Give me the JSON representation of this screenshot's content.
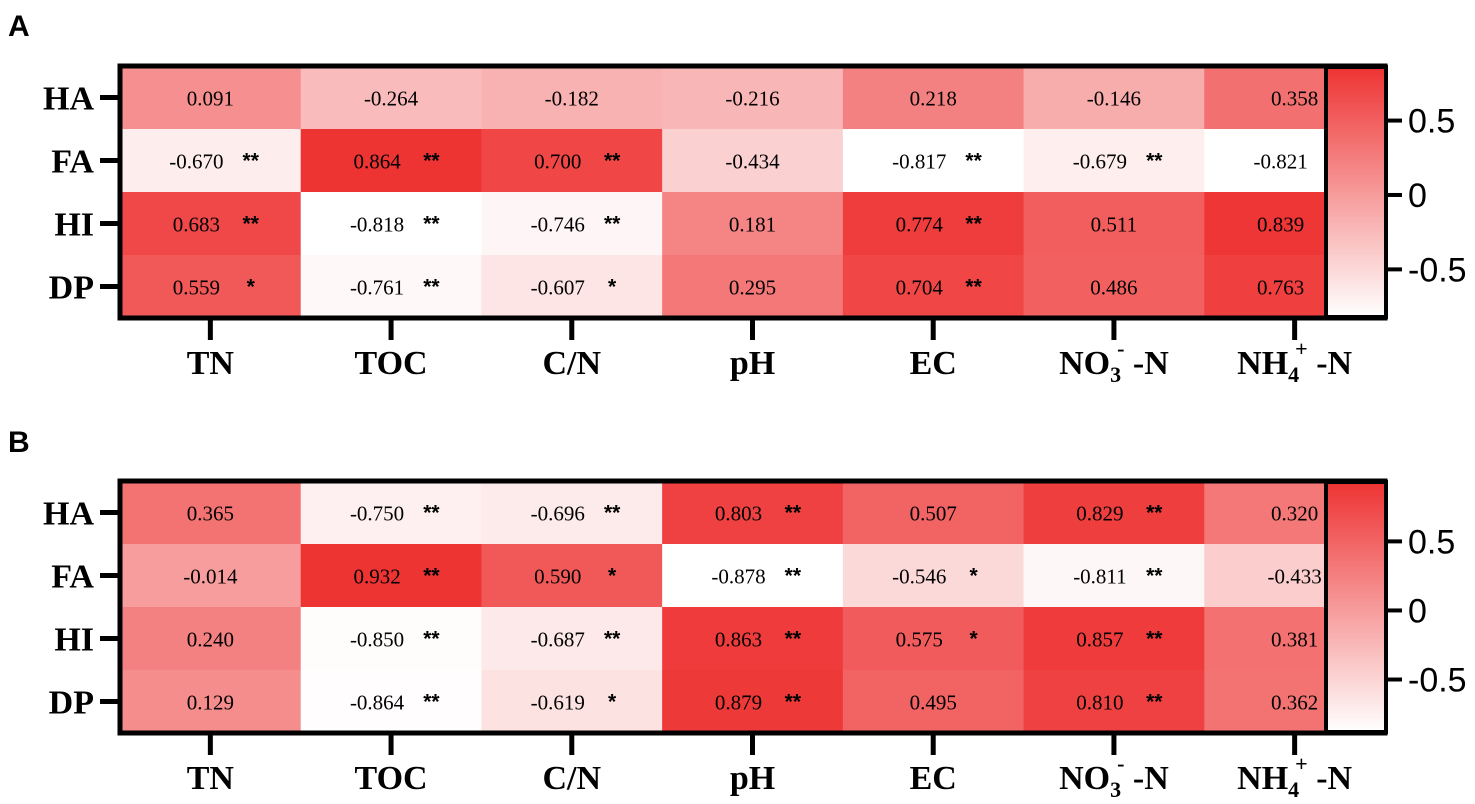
{
  "colors": {
    "low": "#ffffff",
    "high": "#ee3333",
    "axis": "#000000"
  },
  "chart_data": [
    {
      "panel": "A",
      "type": "heatmap",
      "rows": [
        "HA",
        "FA",
        "HI",
        "DP"
      ],
      "columns": [
        {
          "main": "TN",
          "sup": "",
          "sub": "",
          "suffix": ""
        },
        {
          "main": "TOC",
          "sup": "",
          "sub": "",
          "suffix": ""
        },
        {
          "main": "C/N",
          "sup": "",
          "sub": "",
          "suffix": ""
        },
        {
          "main": "pH",
          "sup": "",
          "sub": "",
          "suffix": ""
        },
        {
          "main": "EC",
          "sup": "",
          "sub": "",
          "suffix": ""
        },
        {
          "main": "NO",
          "sup": "-",
          "sub": "3",
          "suffix": " -N"
        },
        {
          "main": "NH",
          "sup": "+",
          "sub": "4",
          "suffix": " -N"
        }
      ],
      "values": [
        [
          "0.091",
          "-0.264",
          "-0.182",
          "-0.216",
          "0.218",
          "-0.146",
          "0.358"
        ],
        [
          "-0.670",
          "0.864",
          "0.700",
          "-0.434",
          "-0.817",
          "-0.679",
          "-0.821"
        ],
        [
          "0.683",
          "-0.818",
          "-0.746",
          "0.181",
          "0.774",
          "0.511",
          "0.839"
        ],
        [
          "0.559",
          "-0.761",
          "-0.607",
          "0.295",
          "0.704",
          "0.486",
          "0.763"
        ]
      ],
      "significance": [
        [
          "",
          "",
          "",
          "",
          "",
          "",
          ""
        ],
        [
          "**",
          "**",
          "**",
          "",
          "**",
          "**",
          "**"
        ],
        [
          "**",
          "**",
          "**",
          "",
          "**",
          "",
          "**"
        ],
        [
          "*",
          "**",
          "*",
          "",
          "**",
          "",
          "**"
        ]
      ],
      "colorbar": {
        "min": -0.82,
        "max": 0.86,
        "ticks": [
          "0.5",
          "0",
          "-0.5"
        ],
        "tick_values": [
          0.5,
          0,
          -0.5
        ]
      }
    },
    {
      "panel": "B",
      "type": "heatmap",
      "rows": [
        "HA",
        "FA",
        "HI",
        "DP"
      ],
      "columns": [
        {
          "main": "TN",
          "sup": "",
          "sub": "",
          "suffix": ""
        },
        {
          "main": "TOC",
          "sup": "",
          "sub": "",
          "suffix": ""
        },
        {
          "main": "C/N",
          "sup": "",
          "sub": "",
          "suffix": ""
        },
        {
          "main": "pH",
          "sup": "",
          "sub": "",
          "suffix": ""
        },
        {
          "main": "EC",
          "sup": "",
          "sub": "",
          "suffix": ""
        },
        {
          "main": "NO",
          "sup": "-",
          "sub": "3",
          "suffix": " -N"
        },
        {
          "main": "NH",
          "sup": "+",
          "sub": "4",
          "suffix": " -N"
        }
      ],
      "values": [
        [
          "0.365",
          "-0.750",
          "-0.696",
          "0.803",
          "0.507",
          "0.829",
          "0.320"
        ],
        [
          "-0.014",
          "0.932",
          "0.590",
          "-0.878",
          "-0.546",
          "-0.811",
          "-0.433"
        ],
        [
          "0.240",
          "-0.850",
          "-0.687",
          "0.863",
          "0.575",
          "0.857",
          "0.381"
        ],
        [
          "0.129",
          "-0.864",
          "-0.619",
          "0.879",
          "0.495",
          "0.810",
          "0.362"
        ]
      ],
      "significance": [
        [
          "",
          "**",
          "**",
          "**",
          "",
          "**",
          ""
        ],
        [
          "",
          "**",
          "*",
          "**",
          "*",
          "**",
          ""
        ],
        [
          "",
          "**",
          "**",
          "**",
          "*",
          "**",
          ""
        ],
        [
          "",
          "**",
          "*",
          "**",
          "",
          "**",
          ""
        ]
      ],
      "colorbar": {
        "min": -0.88,
        "max": 0.93,
        "ticks": [
          "0.5",
          "0",
          "-0.5"
        ],
        "tick_values": [
          0.5,
          0,
          -0.5
        ]
      }
    }
  ]
}
